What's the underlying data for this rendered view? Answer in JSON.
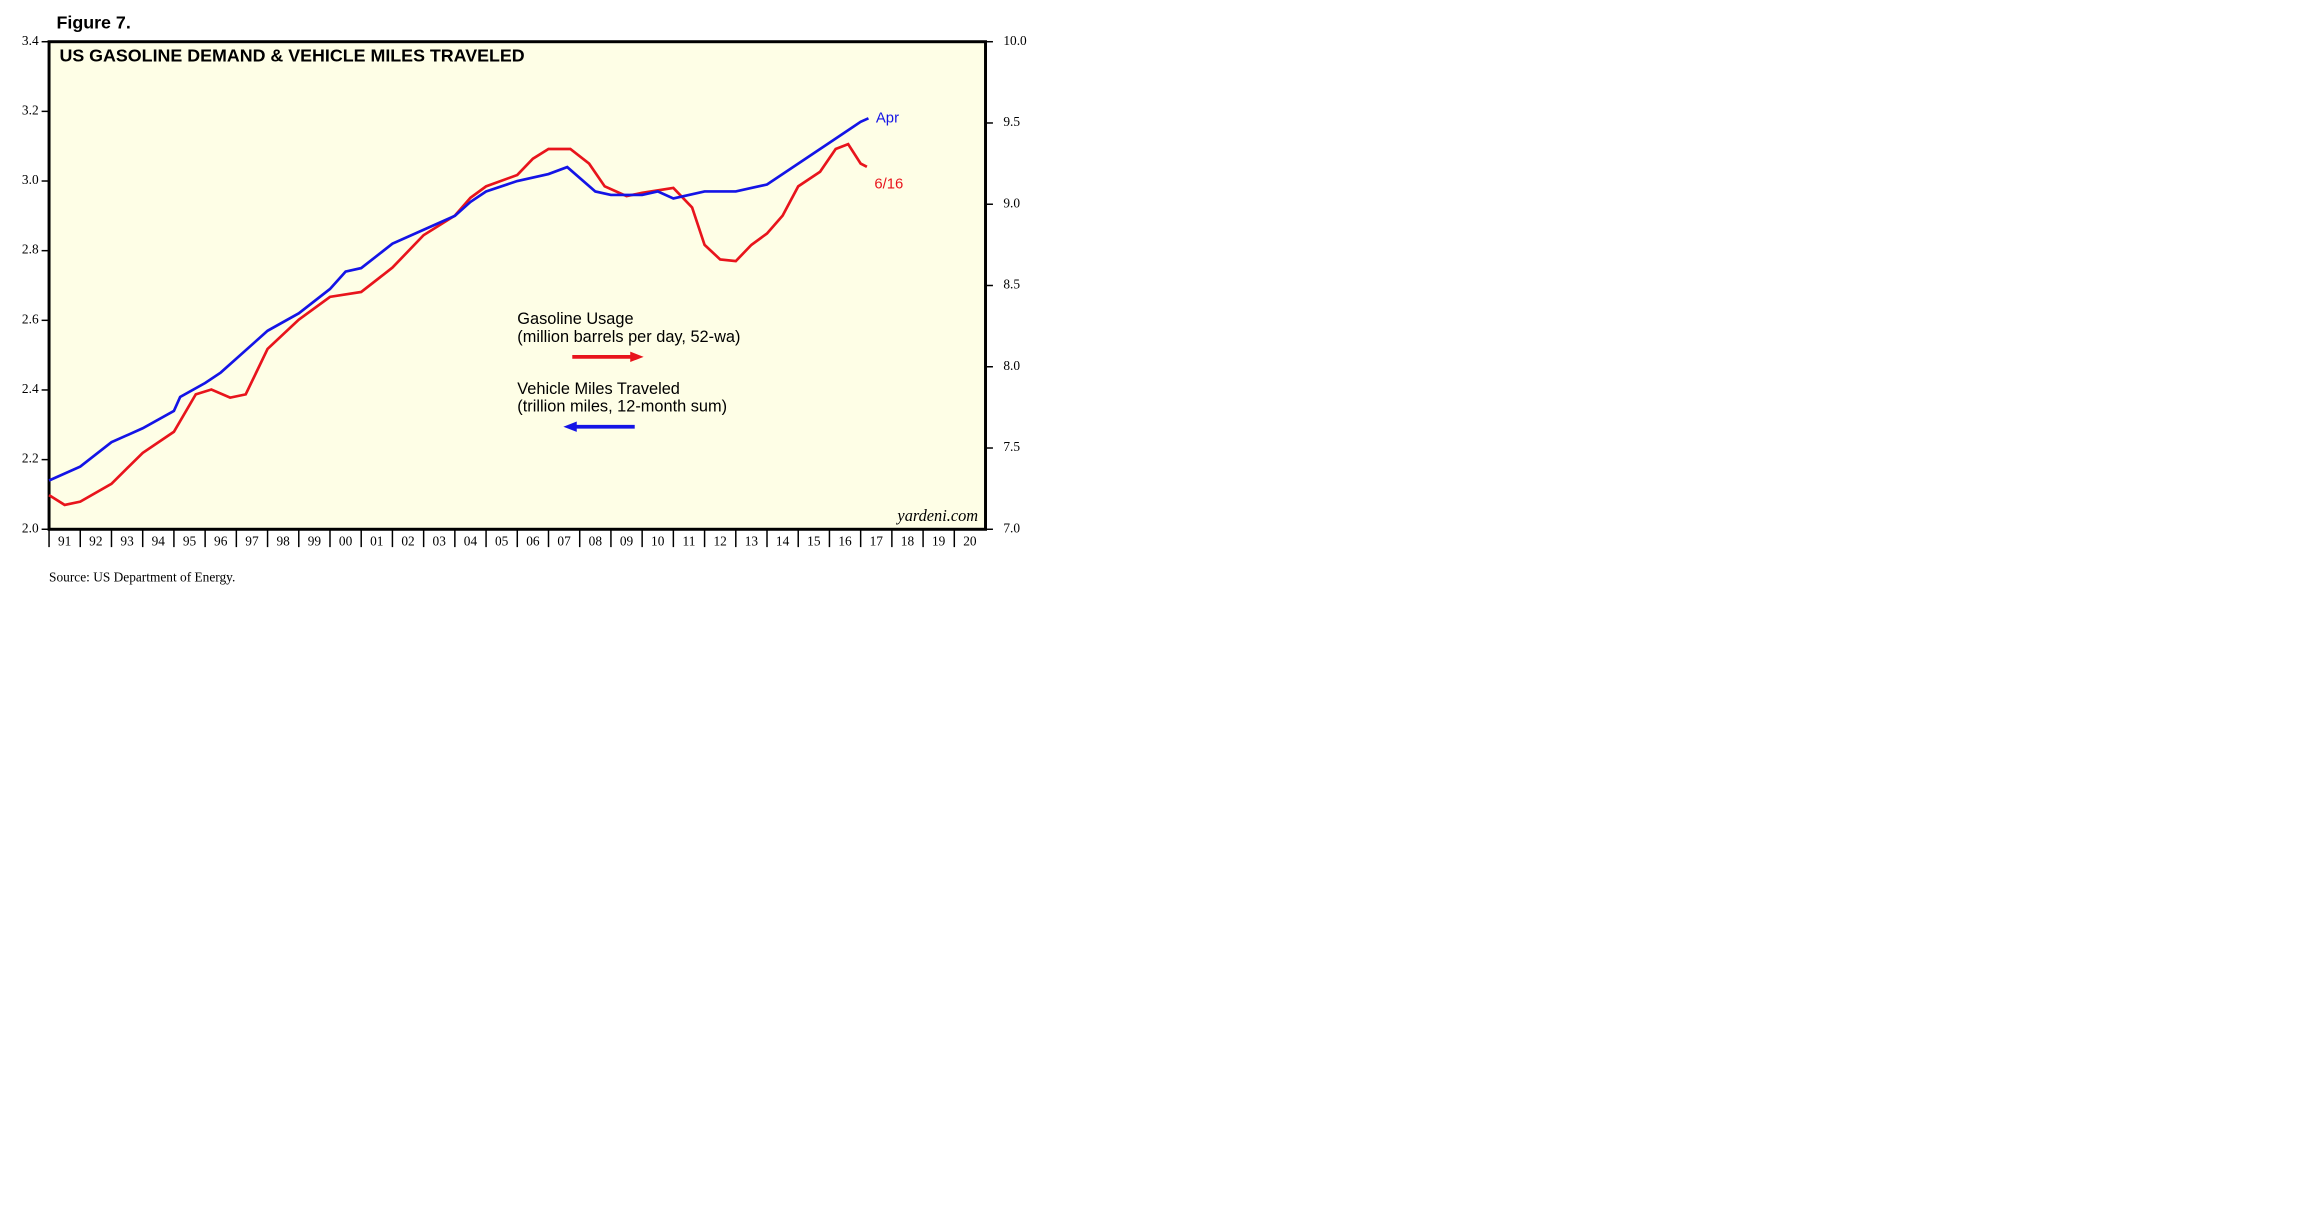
{
  "chart_data": {
    "type": "line",
    "figure_label": "Figure 7.",
    "title": "US GASOLINE DEMAND & VEHICLE MILES TRAVELED",
    "source": "Source: US Department of Energy.",
    "watermark": "yardeni.com",
    "xlim": [
      1991,
      2021
    ],
    "xticks": [
      {
        "value": 1991,
        "label": "91"
      },
      {
        "value": 1992,
        "label": "92"
      },
      {
        "value": 1993,
        "label": "93"
      },
      {
        "value": 1994,
        "label": "94"
      },
      {
        "value": 1995,
        "label": "95"
      },
      {
        "value": 1996,
        "label": "96"
      },
      {
        "value": 1997,
        "label": "97"
      },
      {
        "value": 1998,
        "label": "98"
      },
      {
        "value": 1999,
        "label": "99"
      },
      {
        "value": 2000,
        "label": "00"
      },
      {
        "value": 2001,
        "label": "01"
      },
      {
        "value": 2002,
        "label": "02"
      },
      {
        "value": 2003,
        "label": "03"
      },
      {
        "value": 2004,
        "label": "04"
      },
      {
        "value": 2005,
        "label": "05"
      },
      {
        "value": 2006,
        "label": "06"
      },
      {
        "value": 2007,
        "label": "07"
      },
      {
        "value": 2008,
        "label": "08"
      },
      {
        "value": 2009,
        "label": "09"
      },
      {
        "value": 2010,
        "label": "10"
      },
      {
        "value": 2011,
        "label": "11"
      },
      {
        "value": 2012,
        "label": "12"
      },
      {
        "value": 2013,
        "label": "13"
      },
      {
        "value": 2014,
        "label": "14"
      },
      {
        "value": 2015,
        "label": "15"
      },
      {
        "value": 2016,
        "label": "16"
      },
      {
        "value": 2017,
        "label": "17"
      },
      {
        "value": 2018,
        "label": "18"
      },
      {
        "value": 2019,
        "label": "19"
      },
      {
        "value": 2020,
        "label": "20"
      }
    ],
    "ylim": [
      2.0,
      3.4
    ],
    "yticks": [
      {
        "value": 2,
        "label": "2.0"
      },
      2.2,
      2.4,
      2.6,
      2.8,
      {
        "value": 3,
        "label": "3.0"
      },
      3.2,
      3.4
    ],
    "y2lim": [
      7.0,
      10.0
    ],
    "y2ticks": [
      {
        "value": 7,
        "label": "7.0"
      },
      7.5,
      {
        "value": 8,
        "label": "8.0"
      },
      8.5,
      {
        "value": 9,
        "label": "9.0"
      },
      9.5,
      {
        "value": 10,
        "label": "10.0"
      }
    ],
    "background": "#fefee6",
    "series": [
      {
        "name": "Gasoline Usage",
        "description": "(million barrels per day, 52-wa)",
        "end_label": "6/16",
        "color": "#e8141c",
        "axis": "y2",
        "x": [
          1991,
          1991.5,
          1992,
          1993,
          1994,
          1995,
          1995.7,
          1996.2,
          1996.8,
          1997.3,
          1998,
          1999,
          2000,
          2001,
          2002,
          2003,
          2004,
          2004.5,
          2005,
          2006,
          2006.5,
          2007,
          2007.7,
          2008.3,
          2008.8,
          2009.5,
          2010,
          2011,
          2011.6,
          2012,
          2012.5,
          2013,
          2013.5,
          2014,
          2014.5,
          2015,
          2015.7,
          2016.2,
          2016.6,
          2017,
          2017.2
        ],
        "values": [
          7.21,
          7.15,
          7.17,
          7.28,
          7.47,
          7.6,
          7.83,
          7.86,
          7.81,
          7.83,
          8.11,
          8.29,
          8.43,
          8.46,
          8.61,
          8.81,
          8.93,
          9.04,
          9.11,
          9.18,
          9.28,
          9.34,
          9.34,
          9.25,
          9.11,
          9.05,
          9.07,
          9.1,
          8.98,
          8.75,
          8.66,
          8.65,
          8.75,
          8.82,
          8.93,
          9.11,
          9.2,
          9.34,
          9.37,
          9.25,
          9.23
        ]
      },
      {
        "name": "Vehicle Miles Traveled",
        "description": "(trillion miles, 12-month sum)",
        "end_label": "Apr",
        "color": "#1414e6",
        "x": [
          1991,
          1992,
          1993,
          1994,
          1995,
          1995.2,
          1996,
          1996.5,
          1997,
          1998,
          1999,
          2000,
          2000.5,
          2001,
          2002,
          2003,
          2004,
          2004.5,
          2005,
          2006,
          2007,
          2007.6,
          2008.5,
          2009,
          2010,
          2010.5,
          2011,
          2012,
          2013,
          2013.5,
          2014,
          2015,
          2016,
          2017,
          2017.25
        ],
        "values": [
          2.14,
          2.18,
          2.25,
          2.29,
          2.34,
          2.38,
          2.42,
          2.45,
          2.49,
          2.57,
          2.62,
          2.69,
          2.74,
          2.75,
          2.82,
          2.86,
          2.9,
          2.94,
          2.97,
          3.0,
          3.02,
          3.04,
          2.97,
          2.96,
          2.96,
          2.97,
          2.95,
          2.97,
          2.97,
          2.98,
          2.99,
          3.05,
          3.11,
          3.17,
          3.18
        ]
      }
    ]
  }
}
